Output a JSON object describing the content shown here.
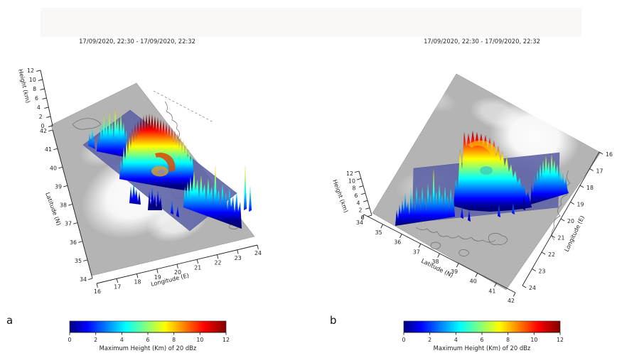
{
  "colors": {
    "background": "#ffffff",
    "header_band": "#faf7f7",
    "satellite_gray": "#b4b4b4",
    "swath_blue": "#5f65a8",
    "colormap": "jet"
  },
  "panels": {
    "a": {
      "letter": "a",
      "title": "17/09/2020, 22:30 - 17/09/2020, 22:32",
      "height_label": "Height (km)",
      "lat_label": "Latitude (N)",
      "lon_label": "Longitude (E)",
      "colorbar_label": "Maximum Height (Km) of 20 dBz",
      "height_ticks": [
        "12",
        "10",
        "8",
        "6",
        "4",
        "2",
        "0"
      ],
      "lat_ticks": [
        "42",
        "41",
        "40",
        "39",
        "38",
        "37",
        "36",
        "35",
        "34"
      ],
      "lon_ticks": [
        "16",
        "17",
        "18",
        "19",
        "20",
        "21",
        "22",
        "23",
        "24"
      ],
      "colorbar_ticks": [
        "0",
        "2",
        "4",
        "6",
        "8",
        "10",
        "12"
      ]
    },
    "b": {
      "letter": "b",
      "title": "17/09/2020, 22:30 - 17/09/2020, 22:32",
      "height_label": "Height (km)",
      "lat_label": "Latitude (N)",
      "lon_label": "Longitude (E)",
      "colorbar_label": "Maximum Height (Km) of 20 dBz",
      "height_ticks": [
        "12",
        "10",
        "8",
        "6",
        "4",
        "2",
        "0"
      ],
      "lat_ticks": [
        "34",
        "35",
        "36",
        "37",
        "38",
        "39",
        "40",
        "41",
        "42"
      ],
      "lon_ticks": [
        "16",
        "17",
        "18",
        "19",
        "20",
        "21",
        "22",
        "23",
        "24"
      ],
      "colorbar_ticks": [
        "0",
        "2",
        "4",
        "6",
        "8",
        "10",
        "12"
      ]
    }
  },
  "chart_data": [
    {
      "panel": "a",
      "type": "3d-surface",
      "title": "17/09/2020, 22:30 - 17/09/2020, 22:32",
      "xlabel": "Longitude (E)",
      "ylabel": "Latitude (N)",
      "zlabel": "Height (km)",
      "xlim": [
        16,
        24
      ],
      "xticks": [
        16,
        17,
        18,
        19,
        20,
        21,
        22,
        23,
        24
      ],
      "ylim": [
        34,
        42
      ],
      "yticks": [
        34,
        35,
        36,
        37,
        38,
        39,
        40,
        41,
        42
      ],
      "zlim": [
        0,
        12
      ],
      "zticks": [
        0,
        2,
        4,
        6,
        8,
        10,
        12
      ],
      "colorbar": {
        "label": "Maximum Height (Km) of 20 dBz",
        "lim": [
          0,
          12
        ],
        "ticks": [
          0,
          2,
          4,
          6,
          8,
          10,
          12
        ],
        "colormap": "jet"
      },
      "legend": "none",
      "grid": "off",
      "content": "Maximum height of the 20 dBz radar echo drawn as colored 3D spikes above a grayscale satellite cloud image; a translucent blue radar swath crosses the map diagonally (NW to SE); a cyclonic spiral of deep convection with echo tops of about 8-12 km (yellow/orange/red) is centred near 38.5-39.5 N, 19-20 E, surrounded by shallower echoes of 2-6 km (blue/cyan) along the swath; a bright white spiral cloud shield is visible underneath on the satellite image.",
      "view": "oblique 3D view, latitude axis on the left, longitude axis along the lower right"
    },
    {
      "panel": "b",
      "type": "3d-surface",
      "title": "17/09/2020, 22:30 - 17/09/2020, 22:32",
      "xlabel": "Longitude (E)",
      "ylabel": "Latitude (N)",
      "zlabel": "Height (km)",
      "xlim": [
        16,
        24
      ],
      "xticks": [
        16,
        17,
        18,
        19,
        20,
        21,
        22,
        23,
        24
      ],
      "ylim": [
        34,
        42
      ],
      "yticks": [
        34,
        35,
        36,
        37,
        38,
        39,
        40,
        41,
        42
      ],
      "zlim": [
        0,
        12
      ],
      "zticks": [
        0,
        2,
        4,
        6,
        8,
        10,
        12
      ],
      "colorbar": {
        "label": "Maximum Height (Km) of 20 dBz",
        "lim": [
          0,
          12
        ],
        "ticks": [
          0,
          2,
          4,
          6,
          8,
          10,
          12
        ],
        "colormap": "jet"
      },
      "legend": "none",
      "grid": "off",
      "content": "Same 20 dBz echo-top field viewed from a rotated azimuth: the blue radar swath runs nearly horizontally across the tilted satellite map; the convective spiral (tops ~8-12 km, orange/red cap) stands near the centre with shallower blue/cyan echoes (2-6 km) scattered along the swath to either side.",
      "view": "oblique 3D view, latitude axis along lower left, longitude axis on the right"
    }
  ]
}
